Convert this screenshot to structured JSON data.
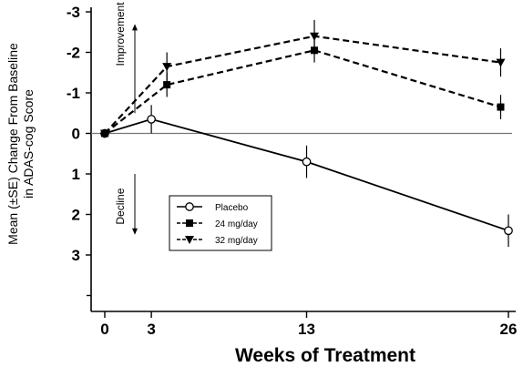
{
  "chart_data": {
    "type": "line",
    "xlabel": "Weeks of Treatment",
    "ylabel_lines": [
      "Mean (±SE) Change From Baseline",
      "in ADAS-cog Score"
    ],
    "x_ticks": [
      0,
      3,
      13,
      26
    ],
    "x_tick_labels": [
      "0",
      "3",
      "13",
      "26"
    ],
    "y_ticks": [
      -3,
      -2,
      -1,
      0,
      1,
      2,
      3
    ],
    "y_tick_labels": [
      "-3",
      "-2",
      "-1",
      "0",
      "1",
      "2",
      "3"
    ],
    "xlim": [
      0,
      26
    ],
    "ylim": [
      -3,
      4
    ],
    "y_inverted": true,
    "reference_line_y": 0,
    "annotations": [
      {
        "text": "Improvement",
        "direction": "up"
      },
      {
        "text": "Decline",
        "direction": "down"
      }
    ],
    "legend_position": "lower-left",
    "series": [
      {
        "name": "Placebo",
        "marker": "open-circle",
        "line": "solid",
        "x": [
          0,
          3,
          13,
          26
        ],
        "values": [
          0,
          -0.35,
          0.7,
          2.4
        ],
        "se": [
          0,
          0.35,
          0.4,
          0.4
        ]
      },
      {
        "name": "24 mg/day",
        "marker": "filled-square",
        "line": "dashed",
        "x": [
          0,
          4,
          13.5,
          25.5
        ],
        "values": [
          0,
          -1.2,
          -2.05,
          -0.65
        ],
        "se": [
          0,
          0.3,
          0.3,
          0.3
        ]
      },
      {
        "name": "32 mg/day",
        "marker": "filled-triangle-down",
        "line": "dashed",
        "x": [
          0,
          4,
          13.5,
          25.5
        ],
        "values": [
          0,
          -1.65,
          -2.4,
          -1.75
        ],
        "se": [
          0,
          0.35,
          0.4,
          0.35
        ]
      }
    ]
  }
}
